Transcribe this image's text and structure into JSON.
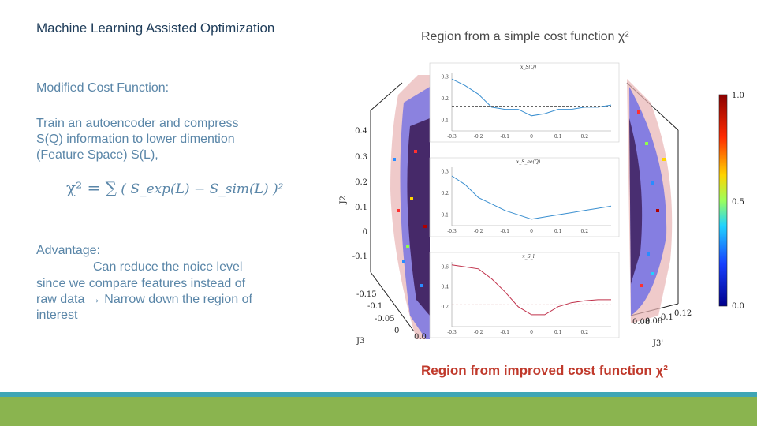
{
  "title": "Machine Learning Assisted Optimization",
  "body": {
    "heading": "Modified Cost Function:",
    "paragraph_lines": [
      "Train an autoencoder and compress",
      "S(Q) information to lower dimention",
      "(Feature Space) S(L),"
    ],
    "formula_lhs": "χ² = ∑",
    "formula_body": "( S_exp(L) − S_sim(L) )²",
    "advantage_heading": "Advantage:",
    "advantage_lines": [
      "Can reduce the noice level",
      "since we compare features instead of",
      "raw data → Narrow down the region of",
      "interest"
    ]
  },
  "figure": {
    "caption_top": "Region from a simple cost function χ²",
    "caption_bottom": "Region from improved cost function χ²",
    "axis_label_j2": "J2",
    "axis_label_j3": "J3",
    "axis_label_j3p": "J3'",
    "j2_ticks": [
      "0.4",
      "0.3",
      "0.2",
      "0.1",
      "0",
      "-0.1"
    ],
    "j3_ticks": [
      "-0.15",
      "-0.1",
      "-0.05",
      "0",
      "0.0"
    ],
    "j3p_ticks": [
      "0.08",
      "0.08",
      "0.1",
      "0.12"
    ],
    "colorbar_ticks": [
      "1.0",
      "0.5",
      "0.0"
    ],
    "colors": {
      "title": "#1f3d5a",
      "body": "#5a86a8",
      "caption_bottom": "#c0392b",
      "footer_teal": "#3fa6b5",
      "footer_green": "#8ab44f"
    }
  },
  "chart_data": [
    {
      "type": "line",
      "title": "x_S(Q)",
      "x_ticks": [
        "-0.3",
        "-0.2",
        "-0.1",
        "0",
        "0.1",
        "0.2"
      ],
      "y_ticks": [
        "0.3",
        "0.2",
        "0.1"
      ],
      "ylim": [
        0.05,
        0.32
      ],
      "xlim": [
        -0.3,
        0.3
      ],
      "series": [
        {
          "x": [
            -0.3,
            -0.25,
            -0.2,
            -0.15,
            -0.1,
            -0.05,
            0,
            0.05,
            0.1,
            0.15,
            0.2,
            0.25,
            0.3
          ],
          "values": [
            0.29,
            0.26,
            0.22,
            0.16,
            0.15,
            0.15,
            0.12,
            0.13,
            0.15,
            0.15,
            0.16,
            0.16,
            0.17
          ]
        }
      ],
      "reference_line": 0.165
    },
    {
      "type": "line",
      "title": "x_S_ae(Q)",
      "x_ticks": [
        "-0.3",
        "-0.2",
        "-0.1",
        "0",
        "0.1",
        "0.2"
      ],
      "y_ticks": [
        "0.3",
        "0.2",
        "0.1"
      ],
      "ylim": [
        0.05,
        0.32
      ],
      "xlim": [
        -0.3,
        0.3
      ],
      "series": [
        {
          "x": [
            -0.3,
            -0.25,
            -0.2,
            -0.15,
            -0.1,
            -0.05,
            0,
            0.05,
            0.1,
            0.15,
            0.2,
            0.25,
            0.3
          ],
          "values": [
            0.28,
            0.24,
            0.18,
            0.15,
            0.12,
            0.1,
            0.08,
            0.09,
            0.1,
            0.11,
            0.12,
            0.13,
            0.14
          ]
        }
      ]
    },
    {
      "type": "line",
      "title": "x_S_l",
      "x_ticks": [
        "-0.3",
        "-0.2",
        "-0.1",
        "0",
        "0.1",
        "0.2"
      ],
      "y_ticks": [
        "0.6",
        "0.4",
        "0.2"
      ],
      "ylim": [
        0,
        0.65
      ],
      "xlim": [
        -0.3,
        0.3
      ],
      "series": [
        {
          "x": [
            -0.3,
            -0.25,
            -0.2,
            -0.15,
            -0.1,
            -0.05,
            0,
            0.05,
            0.1,
            0.15,
            0.2,
            0.25,
            0.3
          ],
          "values": [
            0.62,
            0.6,
            0.58,
            0.48,
            0.35,
            0.2,
            0.12,
            0.12,
            0.2,
            0.24,
            0.26,
            0.27,
            0.27
          ]
        }
      ],
      "reference_line": 0.22
    }
  ]
}
